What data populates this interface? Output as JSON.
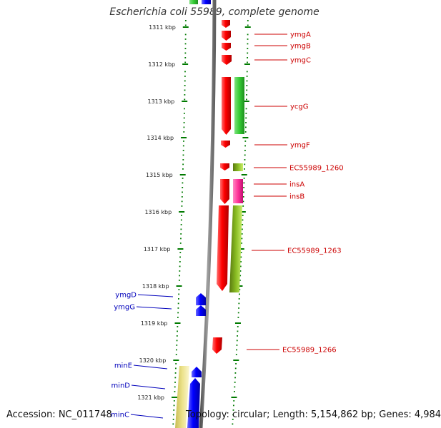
{
  "title": "Escherichia coli 55989, complete genome",
  "footer": {
    "accession": "Accession: NC_011748",
    "summary": "Topology: circular; Length: 5,154,862 bp; Genes: 4,984"
  },
  "colors": {
    "forward_cds": "#ff0000",
    "reverse_cds": "#0000ff",
    "forward_label": "#cc0000",
    "reverse_label": "#0000bb",
    "go_green": "#33cc33",
    "pink": "#ff3399",
    "olive": "#88bb22",
    "khaki": "#ece28a",
    "backbone": "#808080",
    "ruler_dots": "#007a00"
  },
  "ruler": [
    {
      "label": "1311 kbp"
    },
    {
      "label": "1312 kbp"
    },
    {
      "label": "1313 kbp"
    },
    {
      "label": "1314 kbp"
    },
    {
      "label": "1315 kbp"
    },
    {
      "label": "1316 kbp"
    },
    {
      "label": "1317 kbp"
    },
    {
      "label": "1318 kbp"
    },
    {
      "label": "1319 kbp"
    },
    {
      "label": "1320 kbp"
    },
    {
      "label": "1321 kbp"
    }
  ],
  "genes_right": [
    {
      "label": "ymgA"
    },
    {
      "label": "ymgB"
    },
    {
      "label": "ymgC"
    },
    {
      "label": "ycgG"
    },
    {
      "label": "ymgF"
    },
    {
      "label": "EC55989_1260"
    },
    {
      "label": "insA"
    },
    {
      "label": "insB"
    },
    {
      "label": "EC55989_1263"
    },
    {
      "label": "EC55989_1266"
    }
  ],
  "genes_left": [
    {
      "label": "ymgD"
    },
    {
      "label": "ymgG"
    },
    {
      "label": "minE"
    },
    {
      "label": "minD"
    },
    {
      "label": "minC"
    }
  ]
}
